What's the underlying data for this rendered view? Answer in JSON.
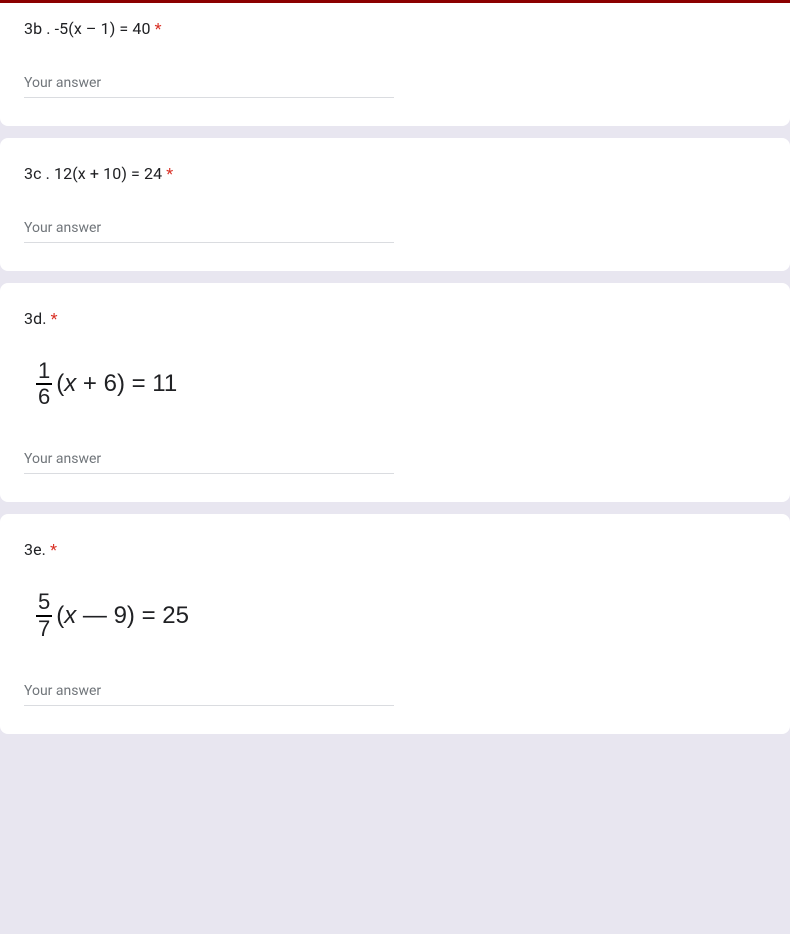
{
  "colors": {
    "top_bar": "#8b0000",
    "page_bg": "#e8e6f0",
    "card_bg": "#ffffff",
    "text": "#202124",
    "required": "#d93025",
    "placeholder": "#70757a",
    "input_border": "#dadce0"
  },
  "questions": [
    {
      "id": "3b",
      "prompt": "3b . -5(x – 1) = 40",
      "required": true,
      "placeholder": "Your answer",
      "has_equation_image": false
    },
    {
      "id": "3c",
      "prompt": "3c . 12(x + 10) = 24",
      "required": true,
      "placeholder": "Your answer",
      "has_equation_image": false
    },
    {
      "id": "3d",
      "prompt": "3d.",
      "required": true,
      "placeholder": "Your answer",
      "has_equation_image": true,
      "equation": {
        "fraction_num": "1",
        "fraction_den": "6",
        "expression_prefix": "(",
        "expression_var": "x",
        "expression_suffix": " + 6) = 11"
      }
    },
    {
      "id": "3e",
      "prompt": "3e.",
      "required": true,
      "placeholder": "Your answer",
      "has_equation_image": true,
      "equation": {
        "fraction_num": "5",
        "fraction_den": "7",
        "expression_prefix": "(",
        "expression_var": "x",
        "expression_suffix": " — 9) = 25"
      }
    }
  ],
  "required_marker": " *"
}
